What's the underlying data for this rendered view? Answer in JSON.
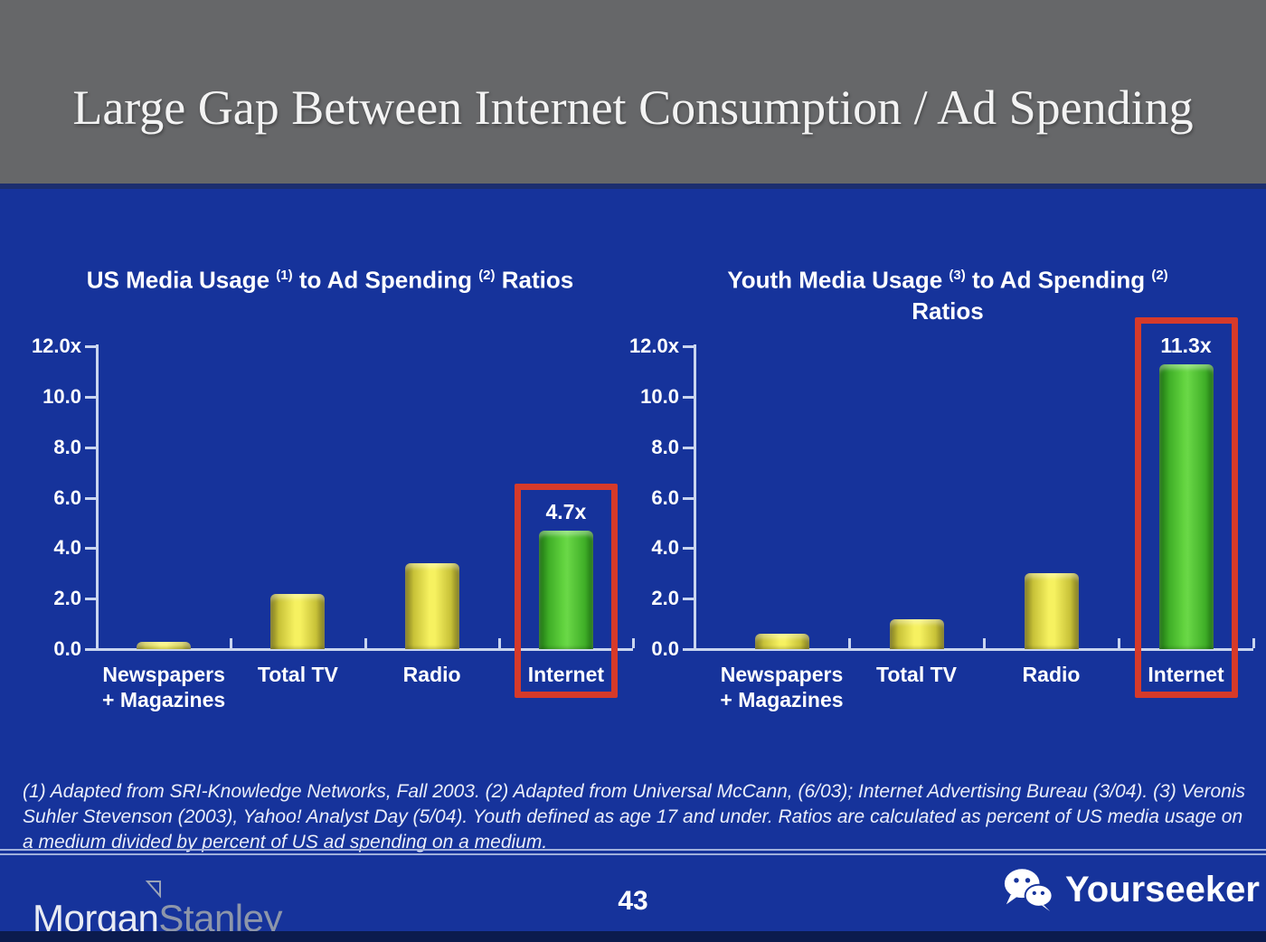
{
  "header": {
    "title": "Large Gap Between Internet Consumption / Ad Spending"
  },
  "footnote": {
    "text": "(1) Adapted from SRI-Knowledge Networks, Fall 2003.  (2) Adapted from Universal McCann, (6/03); Internet Advertising Bureau (3/04). (3) Veronis Suhler Stevenson (2003), Yahoo! Analyst Day (5/04).  Youth defined as age 17 and under.  Ratios are calculated as percent of US media usage on a medium divided by percent of US ad spending on a medium."
  },
  "footer": {
    "page_number": "43",
    "brand_left": {
      "part1": "Morgan",
      "part2": "Stanley"
    },
    "brand_right": {
      "label": "Yourseeker",
      "icon": "wechat-icon"
    }
  },
  "colors": {
    "background_blue": "#16339b",
    "header_gray": "#666769",
    "bar_yellow": "#f2ec4f",
    "bar_green": "#53c837",
    "highlight_red": "#d63a2a",
    "axis_light": "#c9d5ef",
    "bottom_strip_navy": "#0b1b4e"
  },
  "chart_data": [
    {
      "type": "bar",
      "name": "us-media-chart",
      "title_parts": {
        "t1": "US Media Usage",
        "s1": "(1)",
        "t2": "to Ad Spending",
        "s2": "(2)",
        "t3": "Ratios"
      },
      "title_lines": 1,
      "categories": [
        "Newspapers + Magazines",
        "Total TV",
        "Radio",
        "Internet"
      ],
      "category_lines": [
        [
          "Newspapers",
          "+ Magazines"
        ],
        [
          "Total TV"
        ],
        [
          "Radio"
        ],
        [
          "Internet"
        ]
      ],
      "values": [
        0.3,
        2.2,
        3.4,
        4.7
      ],
      "bar_colors": [
        "yellow",
        "yellow",
        "yellow",
        "green"
      ],
      "highlight_index": 3,
      "highlight_label": "4.7x",
      "ylim": [
        0,
        12
      ],
      "yticks": [
        "12.0x",
        "10.0",
        "8.0",
        "6.0",
        "4.0",
        "2.0",
        "0.0"
      ],
      "ytick_values": [
        12,
        10,
        8,
        6,
        4,
        2,
        0
      ],
      "grid": false,
      "legend": "none"
    },
    {
      "type": "bar",
      "name": "youth-media-chart",
      "title_parts": {
        "t1": "Youth Media Usage",
        "s1": "(3)",
        "t2": "to Ad Spending",
        "s2": "(2)",
        "t3": "Ratios"
      },
      "title_lines": 2,
      "categories": [
        "Newspapers + Magazines",
        "Total TV",
        "Radio",
        "Internet"
      ],
      "category_lines": [
        [
          "Newspapers",
          "+ Magazines"
        ],
        [
          "Total TV"
        ],
        [
          "Radio"
        ],
        [
          "Internet"
        ]
      ],
      "values": [
        0.6,
        1.2,
        3.0,
        11.3
      ],
      "bar_colors": [
        "yellow",
        "yellow",
        "yellow",
        "green"
      ],
      "highlight_index": 3,
      "highlight_label": "11.3x",
      "ylim": [
        0,
        12
      ],
      "yticks": [
        "12.0x",
        "10.0",
        "8.0",
        "6.0",
        "4.0",
        "2.0",
        "0.0"
      ],
      "ytick_values": [
        12,
        10,
        8,
        6,
        4,
        2,
        0
      ],
      "grid": false,
      "legend": "none"
    }
  ]
}
